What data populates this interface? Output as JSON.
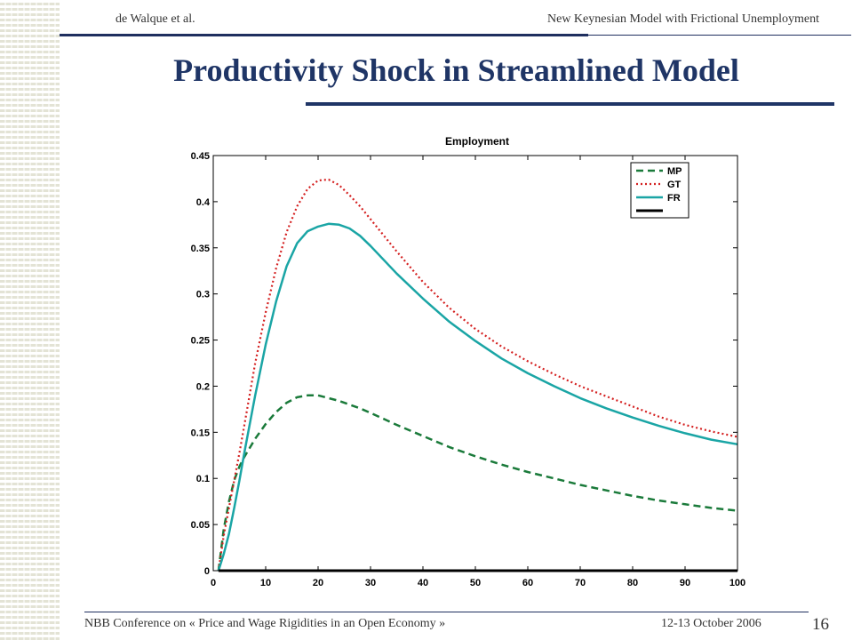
{
  "header": {
    "left_text": "de Walque et al.",
    "right_text": "New Keynesian Model  with Frictional Unemployment"
  },
  "slide_title": "Productivity Shock in Streamlined Model",
  "footer": {
    "left_text": "NBB Conference on « Price and Wage Rigidities in an Open Economy »",
    "right_text": "12-13 October 2006",
    "page_number": "16"
  },
  "chart_data": {
    "type": "line",
    "title": "Employment",
    "xlabel": "",
    "ylabel": "",
    "xlim": [
      0,
      100
    ],
    "ylim": [
      0,
      0.45
    ],
    "xticks": [
      0,
      10,
      20,
      30,
      40,
      50,
      60,
      70,
      80,
      90,
      100
    ],
    "xtick_labels": [
      "0",
      "10",
      "20",
      "30",
      "40",
      "50",
      "60",
      "70",
      "80",
      "90",
      "100"
    ],
    "yticks": [
      0,
      0.05,
      0.1,
      0.15,
      0.2,
      0.25,
      0.3,
      0.35,
      0.4,
      0.45
    ],
    "ytick_labels": [
      "0",
      "0.05",
      "0.1",
      "0.15",
      "0.2",
      "0.25",
      "0.3",
      "0.35",
      "0.4",
      "0.45"
    ],
    "grid": false,
    "legend_position": "top-right",
    "x": [
      1,
      2,
      3,
      4,
      5,
      6,
      8,
      10,
      12,
      14,
      16,
      18,
      20,
      22,
      24,
      26,
      28,
      30,
      35,
      40,
      45,
      50,
      55,
      60,
      65,
      70,
      75,
      80,
      85,
      90,
      95,
      100
    ],
    "series": [
      {
        "name": "MP",
        "style": "dashed",
        "color": "#1a7a3a",
        "values": [
          0.0,
          0.045,
          0.075,
          0.098,
          0.113,
          0.124,
          0.143,
          0.159,
          0.172,
          0.182,
          0.188,
          0.19,
          0.19,
          0.187,
          0.184,
          0.18,
          0.176,
          0.171,
          0.158,
          0.146,
          0.134,
          0.124,
          0.115,
          0.107,
          0.1,
          0.093,
          0.087,
          0.081,
          0.076,
          0.072,
          0.068,
          0.065
        ]
      },
      {
        "name": "GT",
        "style": "dotted",
        "color": "#d42020",
        "values": [
          0.0,
          0.038,
          0.068,
          0.098,
          0.128,
          0.16,
          0.225,
          0.28,
          0.328,
          0.367,
          0.395,
          0.414,
          0.423,
          0.424,
          0.418,
          0.407,
          0.395,
          0.381,
          0.346,
          0.313,
          0.285,
          0.262,
          0.243,
          0.227,
          0.213,
          0.2,
          0.189,
          0.178,
          0.167,
          0.158,
          0.151,
          0.145
        ]
      },
      {
        "name": "FR",
        "style": "solid",
        "color": "#1aa5a5",
        "values": [
          0.0,
          0.018,
          0.04,
          0.068,
          0.098,
          0.13,
          0.19,
          0.245,
          0.292,
          0.33,
          0.355,
          0.368,
          0.373,
          0.376,
          0.375,
          0.371,
          0.363,
          0.352,
          0.322,
          0.295,
          0.27,
          0.249,
          0.23,
          0.214,
          0.2,
          0.187,
          0.176,
          0.166,
          0.157,
          0.149,
          0.142,
          0.137
        ]
      },
      {
        "name": "",
        "style": "solid",
        "color": "#000000",
        "values": [
          0,
          0,
          0,
          0,
          0,
          0,
          0,
          0,
          0,
          0,
          0,
          0,
          0,
          0,
          0,
          0,
          0,
          0,
          0,
          0,
          0,
          0,
          0,
          0,
          0,
          0,
          0,
          0,
          0,
          0,
          0,
          0
        ]
      }
    ]
  }
}
